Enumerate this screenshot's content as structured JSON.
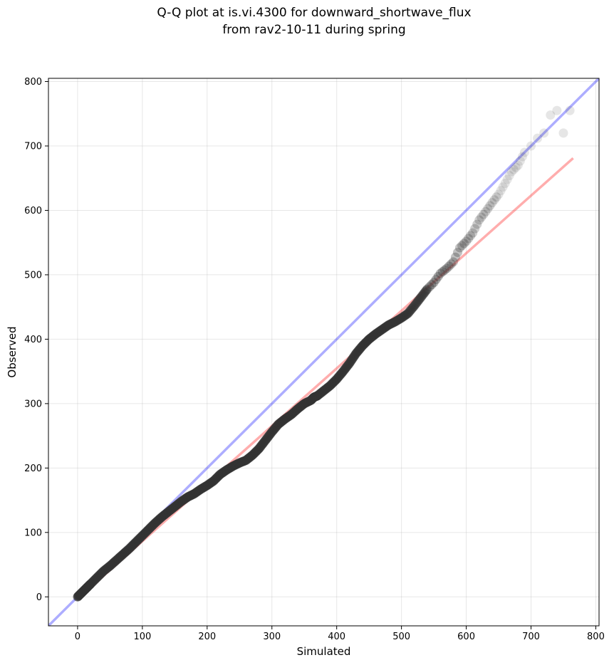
{
  "chart_data": {
    "type": "scatter",
    "title": "Q-Q plot at is.vi.4300 for downward_shortwave_flux",
    "subtitle": "from rav2-10-11 during spring",
    "xlabel": "Simulated",
    "ylabel": "Observed",
    "xlim": [
      -45,
      805
    ],
    "ylim": [
      -45,
      805
    ],
    "xticks": [
      0,
      100,
      200,
      300,
      400,
      500,
      600,
      700,
      800
    ],
    "yticks": [
      0,
      100,
      200,
      300,
      400,
      500,
      600,
      700,
      800
    ],
    "grid": true,
    "reference_line": {
      "x": [
        -45,
        805
      ],
      "y": [
        -45,
        805
      ],
      "color": "#0000ff"
    },
    "fit_line": {
      "x": [
        0,
        765
      ],
      "y": [
        -3,
        681
      ],
      "color": "#ff0000"
    },
    "points": {
      "x": [
        0,
        5,
        10,
        15,
        20,
        30,
        40,
        50,
        60,
        70,
        80,
        90,
        100,
        110,
        120,
        130,
        140,
        150,
        160,
        170,
        180,
        190,
        200,
        210,
        220,
        230,
        240,
        250,
        260,
        270,
        280,
        290,
        300,
        310,
        320,
        330,
        340,
        350,
        360,
        365,
        370,
        380,
        390,
        400,
        410,
        420,
        430,
        440,
        450,
        460,
        470,
        480,
        490,
        500,
        510,
        520,
        530,
        540,
        550,
        560,
        570,
        580,
        590,
        600,
        610,
        620,
        630,
        640,
        650,
        660,
        670,
        680,
        690,
        700,
        710,
        720,
        730,
        740,
        750,
        760
      ],
      "y": [
        0,
        5,
        10,
        15,
        20,
        30,
        40,
        48,
        57,
        66,
        75,
        85,
        95,
        105,
        115,
        124,
        132,
        140,
        148,
        155,
        160,
        167,
        173,
        180,
        190,
        197,
        203,
        208,
        212,
        220,
        230,
        243,
        256,
        268,
        276,
        283,
        292,
        300,
        305,
        310,
        312,
        320,
        328,
        338,
        350,
        363,
        378,
        390,
        400,
        408,
        415,
        422,
        427,
        433,
        440,
        452,
        465,
        478,
        488,
        502,
        510,
        520,
        542,
        552,
        565,
        585,
        598,
        612,
        625,
        642,
        660,
        670,
        690,
        700,
        712,
        720,
        748,
        755,
        720,
        755
      ]
    }
  }
}
